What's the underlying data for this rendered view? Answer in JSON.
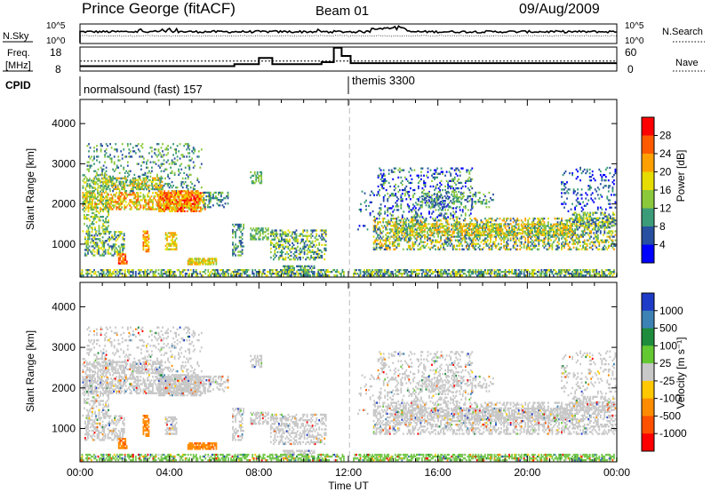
{
  "header": {
    "station": "Prince George (fitACF)",
    "beam": "Beam 01",
    "date": "09/Aug/2009"
  },
  "noise_panel": {
    "left_label": "N.Sky",
    "left_ticks": [
      "10^5",
      "10^0"
    ],
    "right_ticks": [
      "10^5",
      "10^0"
    ],
    "right_label": "N.Search"
  },
  "freq_panel": {
    "left_label_1": "Freq.",
    "left_label_2": "[MHz]",
    "left_ticks": [
      "18",
      "8"
    ],
    "right_ticks": [
      "60",
      "0"
    ],
    "right_label": "Nave",
    "freq_steps": [
      {
        "t": 0.0,
        "f": 9.5
      },
      {
        "t": 6.9,
        "f": 10.5
      },
      {
        "t": 8.0,
        "f": 13.5
      },
      {
        "t": 8.6,
        "f": 10.5
      },
      {
        "t": 10.8,
        "f": 11.5
      },
      {
        "t": 11.35,
        "f": 18.5
      },
      {
        "t": 11.55,
        "f": 18.5
      },
      {
        "t": 11.7,
        "f": 14.5
      },
      {
        "t": 12.1,
        "f": 11
      },
      {
        "t": 24.0,
        "f": 11
      }
    ],
    "nave_level": 25
  },
  "cpid": {
    "label": "CPID",
    "segments": [
      {
        "start": 0,
        "text": "normalsound (fast) 157"
      },
      {
        "start": 12,
        "text": "themis 3300"
      }
    ]
  },
  "chart_data": [
    {
      "type": "heatmap",
      "name": "power",
      "ylabel": "Slant Range [km]",
      "ylim": [
        180,
        4600
      ],
      "yticks": [
        1000,
        2000,
        3000,
        4000
      ],
      "xlim": [
        0,
        24
      ],
      "colorbar": {
        "label": "Power [dB]",
        "ticks": [
          "28",
          "24",
          "20",
          "16",
          "12",
          "8",
          "4"
        ],
        "colors": [
          "#ff0000",
          "#ff5a00",
          "#ffa000",
          "#e6dc00",
          "#8cc83c",
          "#3c9b78",
          "#2850a0",
          "#0000ff"
        ]
      }
    },
    {
      "type": "heatmap",
      "name": "velocity",
      "ylabel": "Slant Range [km]",
      "ylim": [
        180,
        4600
      ],
      "yticks": [
        1000,
        2000,
        3000,
        4000
      ],
      "xlim": [
        0,
        24
      ],
      "xticks": [
        "00:00",
        "04:00",
        "08:00",
        "12:00",
        "16:00",
        "20:00",
        "00:00"
      ],
      "xlabel": "Time UT",
      "colorbar": {
        "label": "Velocity [m s⁻¹]",
        "ticks": [
          "1000",
          "500",
          "100",
          "25",
          "-25",
          "-100",
          "-500",
          "-1000"
        ],
        "colors": [
          "#1e3cc8",
          "#3c82b4",
          "#1e8c3c",
          "#64c832",
          "#c8c8c8",
          "#ffc800",
          "#ff8c00",
          "#ff5000",
          "#ff0000"
        ]
      }
    }
  ],
  "colors": {
    "ground_scatter_velocity": "#c8c8c8",
    "ground_scatter_low": "#78c850"
  }
}
